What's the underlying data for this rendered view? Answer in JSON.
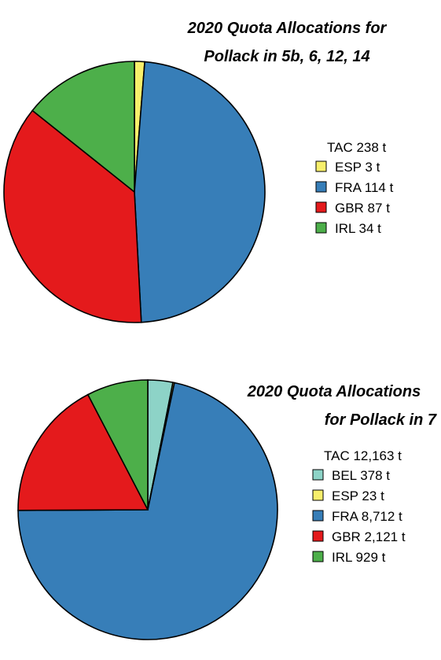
{
  "chart_data": [
    {
      "type": "pie",
      "title_lines": [
        "2020 Quota Allocations for",
        "Pollack in 5b, 6, 12, 14"
      ],
      "legend_title": "TAC 238 t",
      "legend_placement": "right",
      "slices": [
        {
          "code": "ESP",
          "label": "ESP 3 t",
          "value": 3,
          "color": "#f7ef6b"
        },
        {
          "code": "FRA",
          "label": "FRA 114 t",
          "value": 114,
          "color": "#377eb8"
        },
        {
          "code": "GBR",
          "label": "GBR 87 t",
          "value": 87,
          "color": "#e41a1c"
        },
        {
          "code": "IRL",
          "label": "IRL 34 t",
          "value": 34,
          "color": "#4daf4a"
        }
      ]
    },
    {
      "type": "pie",
      "title_lines": [
        "2020 Quota Allocations",
        "for Pollack in 7"
      ],
      "legend_title": "TAC 12,163 t",
      "legend_placement": "right",
      "slices": [
        {
          "code": "BEL",
          "label": "BEL 378 t",
          "value": 378,
          "color": "#8dd3c7"
        },
        {
          "code": "ESP",
          "label": "ESP 23 t",
          "value": 23,
          "color": "#f7ef6b"
        },
        {
          "code": "FRA",
          "label": "FRA 8,712 t",
          "value": 8712,
          "color": "#377eb8"
        },
        {
          "code": "GBR",
          "label": "GBR 2,121 t",
          "value": 2121,
          "color": "#e41a1c"
        },
        {
          "code": "IRL",
          "label": "IRL 929 t",
          "value": 929,
          "color": "#4daf4a"
        }
      ]
    }
  ]
}
